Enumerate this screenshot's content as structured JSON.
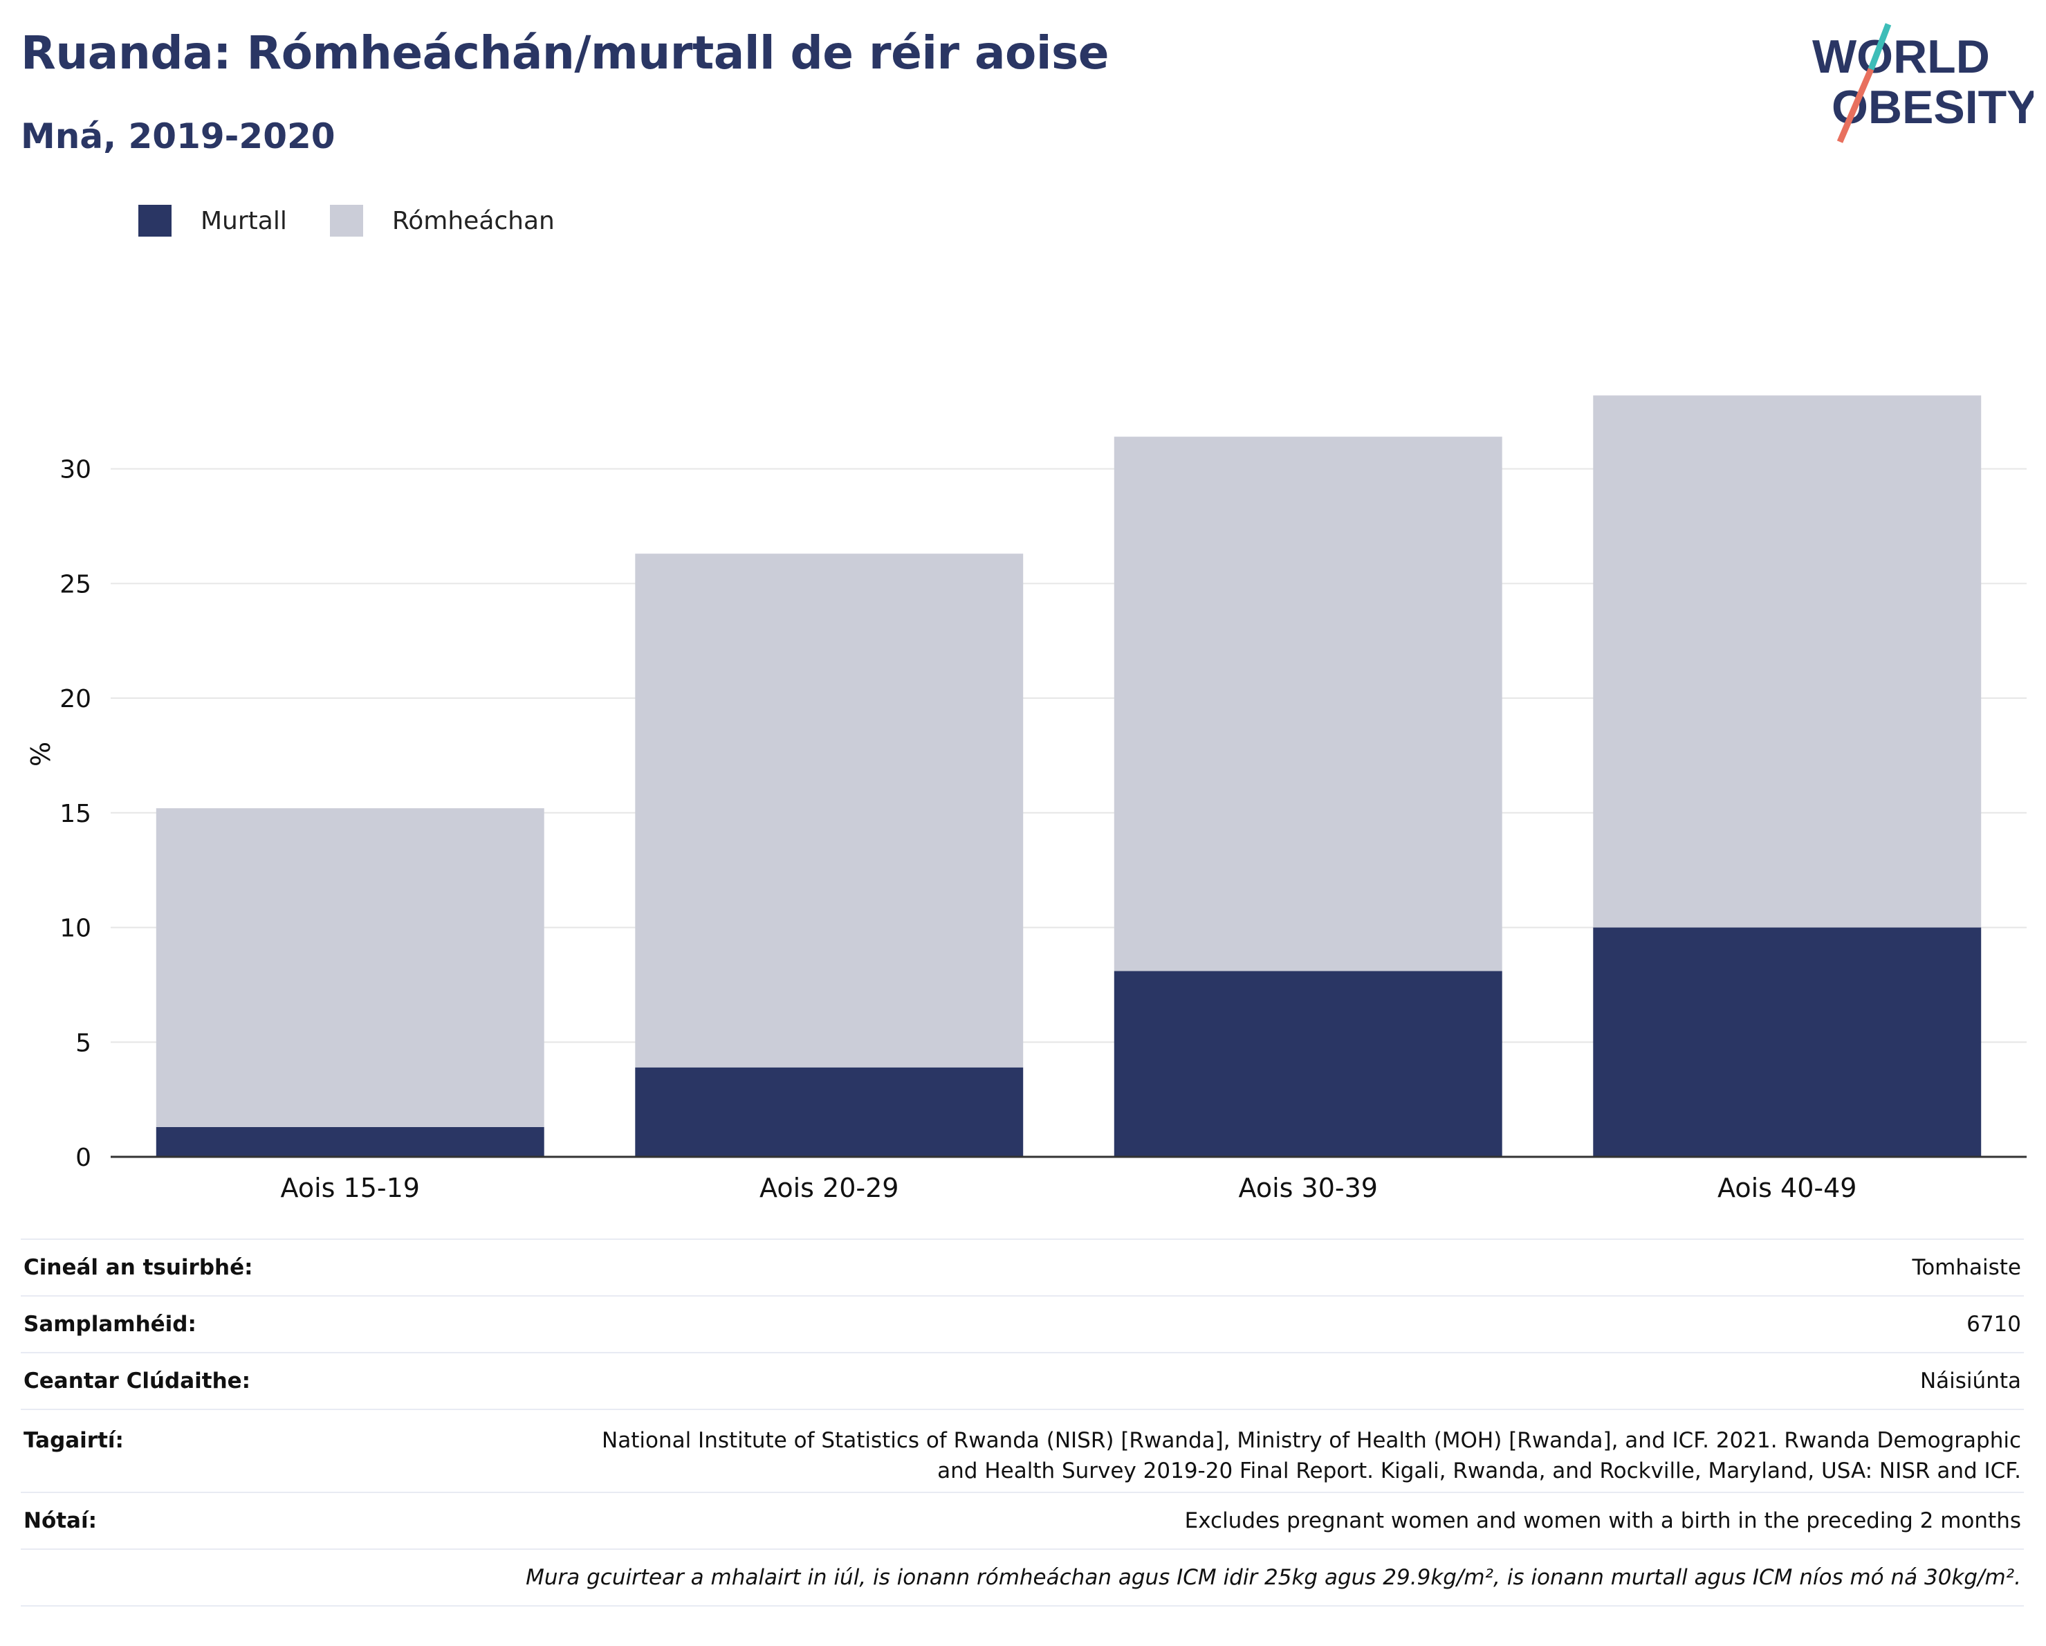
{
  "header": {
    "title": "Ruanda: Rómheáchán/murtall de réir aoise",
    "subtitle": "Mná, 2019-2020"
  },
  "logo": {
    "line1": "WORLD",
    "line2": "OBESITY"
  },
  "colors": {
    "obese": "#2a3664",
    "overweight": "#cbcdd8",
    "accent_teal": "#3dbdb8",
    "accent_coral": "#e8705e",
    "title": "#2a3664"
  },
  "chart_data": {
    "type": "bar",
    "stacked": true,
    "categories": [
      "Aois 15-19",
      "Aois 20-29",
      "Aois 30-39",
      "Aois 40-49"
    ],
    "series": [
      {
        "name": "Murtall",
        "values": [
          1.3,
          3.9,
          8.1,
          10.0
        ]
      },
      {
        "name": "Rómheáchan",
        "values": [
          13.9,
          22.4,
          23.3,
          23.2
        ]
      }
    ],
    "ylabel": "%",
    "ylim": [
      0,
      34
    ],
    "yticks": [
      0,
      5,
      10,
      15,
      20,
      25,
      30
    ],
    "grid": true,
    "legend": "top-left"
  },
  "info": {
    "survey_type_label": "Cineál an tsuirbhé:",
    "survey_type_value": "Tomhaiste",
    "sample_label": "Samplamhéid:",
    "sample_value": "6710",
    "area_label": "Ceantar Clúdaithe:",
    "area_value": "Náisiúnta",
    "ref_label": "Tagairtí:",
    "ref_value_1": "National Institute of Statistics of Rwanda (NISR) [Rwanda], Ministry of Health (MOH) [Rwanda], and ICF. 2021. Rwanda Demographic",
    "ref_value_2": "and Health Survey 2019-20 Final Report. Kigali, Rwanda, and Rockville, Maryland, USA: NISR and ICF.",
    "notes_label": "Nótaí:",
    "notes_value": "Excludes pregnant women and women with a birth in the preceding 2 months",
    "footnote": "Mura gcuirtear a mhalairt in iúl, is ionann rómheáchan agus ICM idir 25kg agus 29.9kg/m², is ionann murtall agus ICM níos mó ná 30kg/m²."
  }
}
